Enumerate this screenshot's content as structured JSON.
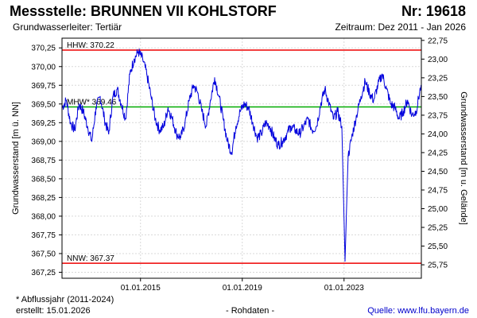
{
  "header": {
    "title": "Messstelle: BRUNNEN VII KOHLSTORF",
    "number": "Nr: 19618",
    "aquifer": "Grundwasserleiter: Tertiär",
    "period": "Zeitraum: Dez 2011 - Jan 2026"
  },
  "footer": {
    "note": "* Abflussjahr (2011-2024)",
    "created": "erstellt:  15.01.2026",
    "rawdata": "- Rohdaten -",
    "source": "Quelle:  www.lfu.bayern.de"
  },
  "colors": {
    "series": "#0000dd",
    "hhw_nnw": "#ee0000",
    "mhw": "#00aa00",
    "frame": "#000000"
  },
  "chart_data": {
    "type": "line",
    "xlabel": "",
    "ylabel": "Grundwasserstand [m ü. NN]",
    "ylabel_right": "Grundwasserstand [m u. Gelände]",
    "xlim": [
      "2011-12-01",
      "2026-01-15"
    ],
    "ylim": [
      367.17,
      370.38
    ],
    "ylim_right": [
      25.93,
      22.72
    ],
    "grid": true,
    "x_ticks": [
      "01.01.2015",
      "01.01.2019",
      "01.01.2023"
    ],
    "y_ticks": [
      "367,25",
      "367,50",
      "367,75",
      "368,00",
      "368,25",
      "368,50",
      "368,75",
      "369,00",
      "369,25",
      "369,50",
      "369,75",
      "370,00",
      "370,25"
    ],
    "y_ticks_right": [
      "25,75",
      "25,50",
      "25,25",
      "25,00",
      "24,75",
      "24,50",
      "24,25",
      "24,00",
      "23,75",
      "23,50",
      "23,25",
      "23,00",
      "22,75"
    ],
    "reference_lines": [
      {
        "label": "HHW: 370.22",
        "value": 370.22
      },
      {
        "label": "MHW* 369.46",
        "value": 369.46
      },
      {
        "label": "NNW: 367.37",
        "value": 367.37
      }
    ],
    "series": [
      {
        "x": [
          "2011-12-01",
          "2012-02-01",
          "2012-04-01",
          "2012-06-01",
          "2012-08-01",
          "2012-10-01",
          "2012-12-01",
          "2013-02-01",
          "2013-04-01",
          "2013-06-01",
          "2013-08-01",
          "2013-10-01",
          "2013-12-01",
          "2014-02-01",
          "2014-04-01",
          "2014-06-01",
          "2014-08-01",
          "2014-10-01",
          "2014-12-01",
          "2015-02-01",
          "2015-04-01",
          "2015-06-01",
          "2015-08-01",
          "2015-10-01",
          "2015-12-01",
          "2016-02-01",
          "2016-04-01",
          "2016-06-01",
          "2016-08-01",
          "2016-10-01",
          "2016-12-01",
          "2017-02-01",
          "2017-04-01",
          "2017-06-01",
          "2017-08-01",
          "2017-10-01",
          "2017-12-01",
          "2018-02-01",
          "2018-04-01",
          "2018-06-01",
          "2018-08-01",
          "2018-10-01",
          "2018-12-01",
          "2019-02-01",
          "2019-04-01",
          "2019-06-01",
          "2019-08-01",
          "2019-10-01",
          "2019-12-01",
          "2020-02-01",
          "2020-04-01",
          "2020-06-01",
          "2020-08-01",
          "2020-10-01",
          "2020-12-01",
          "2021-02-01",
          "2021-04-01",
          "2021-06-01",
          "2021-08-01",
          "2021-10-01",
          "2021-12-01",
          "2022-02-01",
          "2022-04-01",
          "2022-06-01",
          "2022-08-01",
          "2022-10-01",
          "2022-12-01",
          "2023-01-15",
          "2023-03-01",
          "2023-05-01",
          "2023-07-01",
          "2023-09-01",
          "2023-11-01",
          "2024-01-01",
          "2024-03-01",
          "2024-05-01",
          "2024-07-01",
          "2024-09-01",
          "2024-11-01",
          "2025-01-01",
          "2025-03-01",
          "2025-05-01",
          "2025-07-01",
          "2025-09-01",
          "2025-11-01",
          "2026-01-10"
        ],
        "values": [
          369.45,
          369.55,
          369.25,
          369.15,
          369.5,
          369.4,
          369.2,
          369.0,
          369.45,
          369.6,
          369.3,
          369.1,
          369.6,
          369.7,
          369.5,
          369.3,
          369.9,
          370.1,
          370.2,
          370.1,
          369.9,
          369.6,
          369.3,
          369.15,
          369.2,
          369.45,
          369.3,
          369.1,
          369.05,
          369.25,
          369.55,
          369.75,
          369.65,
          369.4,
          369.2,
          369.55,
          369.85,
          369.6,
          369.3,
          369.0,
          368.85,
          369.2,
          369.4,
          369.5,
          369.45,
          369.25,
          369.05,
          369.1,
          369.25,
          369.2,
          369.05,
          368.95,
          369.0,
          369.1,
          369.2,
          369.15,
          369.1,
          369.2,
          369.3,
          369.15,
          369.2,
          369.5,
          369.7,
          369.5,
          369.3,
          369.4,
          369.2,
          367.4,
          368.8,
          369.1,
          369.35,
          369.6,
          369.8,
          369.65,
          369.55,
          369.75,
          369.9,
          369.7,
          369.5,
          369.45,
          369.3,
          369.4,
          369.55,
          369.35,
          369.4,
          369.75
        ]
      }
    ]
  }
}
